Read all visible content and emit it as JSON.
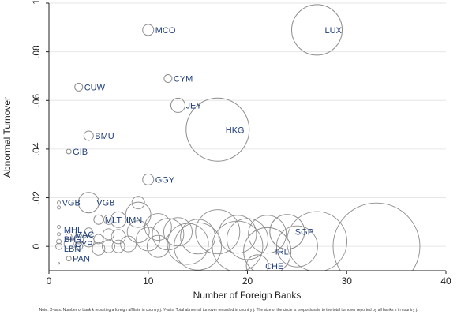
{
  "chart_data": {
    "type": "scatter",
    "title": "",
    "xlabel": "Number of Foreign Banks",
    "ylabel": "Abnormal Turnover",
    "xlim": [
      0,
      40
    ],
    "ylim": [
      -0.01,
      0.1
    ],
    "x_ticks": [
      0,
      10,
      20,
      30,
      40
    ],
    "x_tick_labels": [
      "0",
      "10",
      "20",
      "30",
      "40"
    ],
    "y_ticks": [
      0,
      0.02,
      0.04,
      0.06,
      0.08,
      0.1
    ],
    "y_tick_labels": [
      "0",
      ".02",
      ".04",
      ".06",
      ".08",
      ".1"
    ],
    "grid": true,
    "marker": "hollow circle, size proportional to total turnover",
    "marker_color": "#8c8c8c",
    "label_color": "#1f3f79",
    "labeled_points": [
      {
        "label": "MCO",
        "x": 10,
        "y": 0.089,
        "size": 7
      },
      {
        "label": "LUX",
        "x": 27,
        "y": 0.089,
        "size": 32
      },
      {
        "label": "CYM",
        "x": 12,
        "y": 0.069,
        "size": 5
      },
      {
        "label": "CUW",
        "x": 3,
        "y": 0.0655,
        "size": 5
      },
      {
        "label": "JEY",
        "x": 13,
        "y": 0.058,
        "size": 9
      },
      {
        "label": "HKG",
        "x": 17,
        "y": 0.048,
        "size": 40
      },
      {
        "label": "BMU",
        "x": 4,
        "y": 0.0455,
        "size": 6
      },
      {
        "label": "GIB",
        "x": 2,
        "y": 0.039,
        "size": 3
      },
      {
        "label": "GGY",
        "x": 10,
        "y": 0.0275,
        "size": 7
      },
      {
        "label": "VGB",
        "x": 1,
        "y": 0.018,
        "size": 2
      },
      {
        "label": "VGB",
        "x": 4,
        "y": 0.018,
        "size": 13
      },
      {
        "label": "MLT",
        "x": 5,
        "y": 0.011,
        "size": 6
      },
      {
        "label": "IMN",
        "x": 7,
        "y": 0.011,
        "size": 10
      },
      {
        "label": "SGP",
        "x": 24,
        "y": 0.006,
        "size": 22
      },
      {
        "label": "IRL",
        "x": 22,
        "y": -0.002,
        "size": 30
      },
      {
        "label": "CHE",
        "x": 21,
        "y": -0.008,
        "size": 14
      },
      {
        "label": "PAN",
        "x": 2,
        "y": -0.005,
        "size": 3
      }
    ],
    "cluster_labels": [
      "MHL",
      "MAC",
      "BHR",
      "CYP",
      "LBN"
    ],
    "unlabeled_points": [
      {
        "x": 33,
        "y": 0.0,
        "size": 55
      },
      {
        "x": 27,
        "y": 0.002,
        "size": 38
      },
      {
        "x": 20,
        "y": 0.003,
        "size": 26
      },
      {
        "x": 19,
        "y": 0.005,
        "size": 24
      },
      {
        "x": 17,
        "y": 0.006,
        "size": 28
      },
      {
        "x": 15,
        "y": 0.004,
        "size": 22
      },
      {
        "x": 14,
        "y": 0.001,
        "size": 26
      },
      {
        "x": 13,
        "y": 0.006,
        "size": 18
      },
      {
        "x": 12,
        "y": 0.005,
        "size": 20
      },
      {
        "x": 11,
        "y": 0.008,
        "size": 17
      },
      {
        "x": 11,
        "y": 0.0,
        "size": 14
      },
      {
        "x": 10,
        "y": 0.003,
        "size": 15
      },
      {
        "x": 9,
        "y": 0.006,
        "size": 14
      },
      {
        "x": 9,
        "y": 0.013,
        "size": 16
      },
      {
        "x": 9,
        "y": 0.018,
        "size": 8
      },
      {
        "x": 8,
        "y": 0.001,
        "size": 10
      },
      {
        "x": 7,
        "y": 0.004,
        "size": 9
      },
      {
        "x": 7,
        "y": 0.0,
        "size": 8
      },
      {
        "x": 6,
        "y": 0.005,
        "size": 7
      },
      {
        "x": 6,
        "y": 0.011,
        "size": 6
      },
      {
        "x": 6,
        "y": 0.0,
        "size": 8
      },
      {
        "x": 5,
        "y": 0.003,
        "size": 6
      },
      {
        "x": 5,
        "y": -0.001,
        "size": 8
      },
      {
        "x": 4,
        "y": 0.002,
        "size": 7
      },
      {
        "x": 4,
        "y": 0.006,
        "size": 5
      },
      {
        "x": 3,
        "y": 0.003,
        "size": 6
      },
      {
        "x": 3,
        "y": 0.0,
        "size": 5
      },
      {
        "x": 2,
        "y": 0.004,
        "size": 4
      },
      {
        "x": 2,
        "y": 0.001,
        "size": 6
      },
      {
        "x": 1,
        "y": 0.008,
        "size": 2
      },
      {
        "x": 1,
        "y": 0.005,
        "size": 2
      },
      {
        "x": 1,
        "y": 0.002,
        "size": 3
      },
      {
        "x": 1,
        "y": 0.0,
        "size": 4
      },
      {
        "x": 1,
        "y": 0.016,
        "size": 2
      },
      {
        "x": 1,
        "y": -0.007,
        "size": 1
      },
      {
        "x": 15,
        "y": 0.0,
        "size": 30
      },
      {
        "x": 19,
        "y": 0.0,
        "size": 32
      },
      {
        "x": 25,
        "y": 0.0,
        "size": 26
      },
      {
        "x": 22,
        "y": 0.005,
        "size": 24
      }
    ]
  },
  "note": "Note: X-axis: Number of bank k reporting a foreign affiliate in country j. Y-axis: Total abnormal turnover recorded in country j. The size of the circle is proportionate to the total turnover reported by all banks k in country j."
}
